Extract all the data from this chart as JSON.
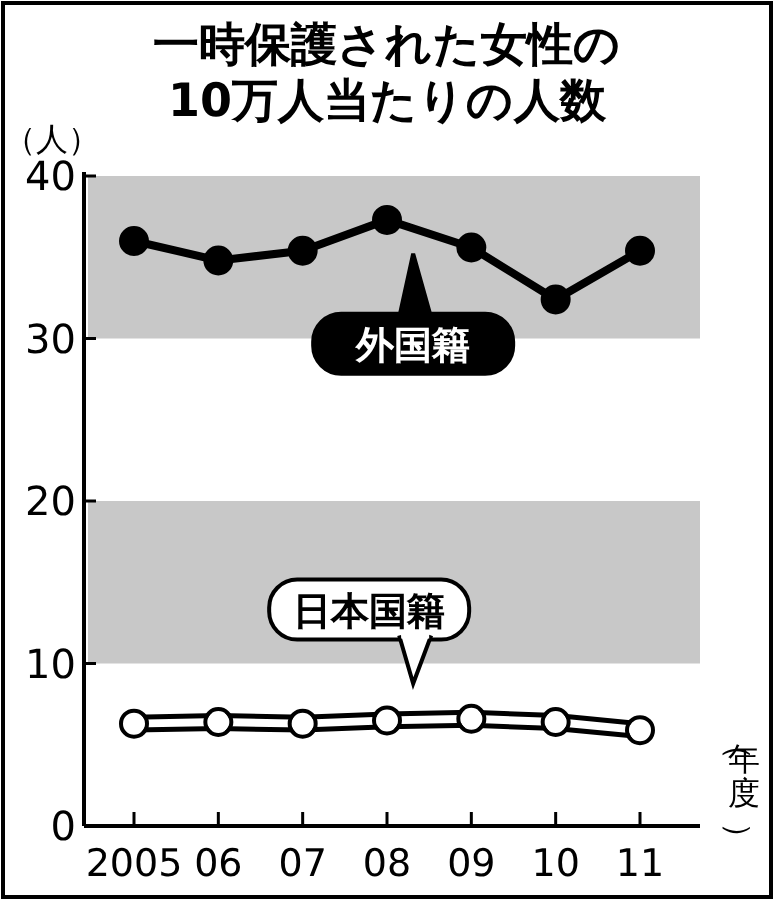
{
  "chart_data": {
    "type": "line",
    "title": "一時保護された女性の\n10万人当たりの人数",
    "ylabel": "（人）",
    "xlabel": "（年度）",
    "categories": [
      "2005",
      "06",
      "07",
      "08",
      "09",
      "10",
      "11"
    ],
    "series": [
      {
        "name": "外国籍",
        "color": "#000000",
        "values": [
          36.0,
          34.8,
          35.4,
          37.3,
          35.6,
          32.4,
          35.4
        ],
        "marker": "circle"
      },
      {
        "name": "日本国籍",
        "color": "#000000",
        "values": [
          6.3,
          6.4,
          6.3,
          6.5,
          6.6,
          6.4,
          5.9
        ],
        "marker": "circle"
      }
    ],
    "ylim": [
      0,
      40
    ],
    "yticks": [
      0,
      10,
      20,
      30,
      40
    ],
    "bands": [
      {
        "axis": "y",
        "from": 10,
        "to": 20,
        "color": "#c8c8c8"
      },
      {
        "axis": "y",
        "from": 30,
        "to": 40,
        "color": "#c8c8c8"
      }
    ],
    "grid": false,
    "legend": "center"
  }
}
